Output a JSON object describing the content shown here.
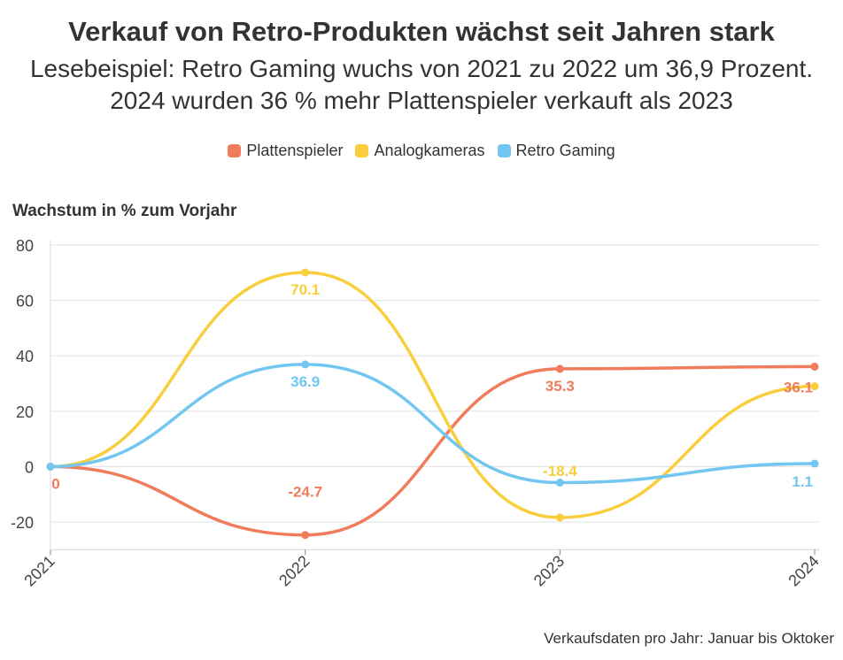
{
  "chart_data": {
    "type": "line",
    "title": "Verkauf von Retro-Produkten wächst seit Jahren stark",
    "subtitle": "Lesebeispiel: Retro Gaming wuchs von 2021 zu 2022 um 36,9 Prozent. 2024 wurden 36 % mehr Plattenspieler verkauft als 2023",
    "ylabel": "Wachstum in % zum Vorjahr",
    "xlabel": "",
    "x": [
      "2021",
      "2022",
      "2023",
      "2024"
    ],
    "ylim": [
      -30,
      80
    ],
    "yticks": [
      80,
      60,
      40,
      20,
      0,
      -20
    ],
    "ytick_labels": [
      "80",
      "60",
      "40",
      "20",
      "0",
      "-20"
    ],
    "grid": true,
    "legend_position": "top-center",
    "series": [
      {
        "name": "Plattenspieler",
        "color": "#f07c5b",
        "values": [
          0,
          -24.7,
          35.3,
          36.1
        ],
        "labels": [
          "0",
          "-24.7",
          "35.3",
          "36.1"
        ]
      },
      {
        "name": "Analogkameras",
        "color": "#f9ce3c",
        "values": [
          0,
          70.1,
          -18.4,
          29
        ],
        "labels": [
          "",
          "70.1",
          "-18.4",
          ""
        ]
      },
      {
        "name": "Retro Gaming",
        "color": "#72c6f0",
        "values": [
          0,
          36.9,
          -5.8,
          1.1
        ],
        "labels": [
          "",
          "36.9",
          "",
          "1.1"
        ]
      }
    ],
    "note": "Verkaufsdaten pro Jahr: Januar bis Oktoker"
  }
}
